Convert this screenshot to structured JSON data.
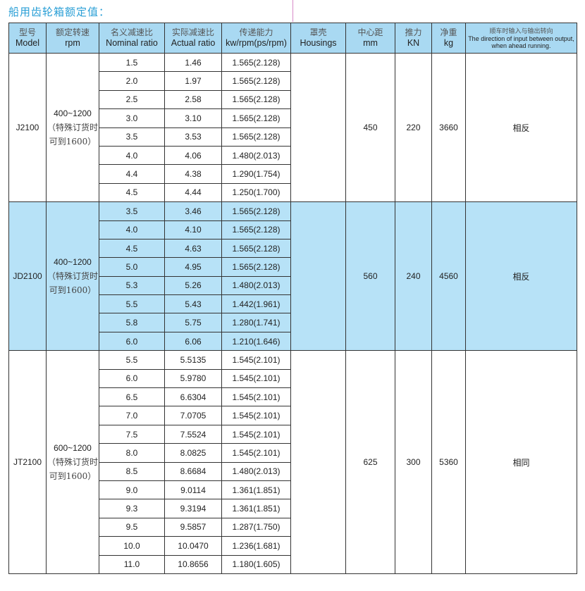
{
  "title": "船用齿轮箱额定值：",
  "headers": [
    {
      "cn": "型号",
      "en": "Model"
    },
    {
      "cn": "额定转速",
      "en": "rpm"
    },
    {
      "cn": "名义减速比",
      "en": "Nominal ratio"
    },
    {
      "cn": "实际减速比",
      "en": "Actual ratio"
    },
    {
      "cn": "传递能力",
      "en": "kw/rpm(ps/rpm)"
    },
    {
      "cn": "罩壳",
      "en": "Housings"
    },
    {
      "cn": "中心距",
      "en": "mm"
    },
    {
      "cn": "推力",
      "en": "KN"
    },
    {
      "cn": "净重",
      "en": "kg"
    },
    {
      "cn": "顺车时输入与输出转向",
      "en": "The direction of input between output, when ahead running."
    }
  ],
  "groups": [
    {
      "model": "J2100",
      "rpm": "400~1200",
      "rpm_note1": "（特殊订货时",
      "rpm_note2": "可到1600）",
      "housings": "",
      "mm": "450",
      "kn": "220",
      "kg": "3660",
      "direction": "相反",
      "highlight": false,
      "rows": [
        [
          "1.5",
          "1.46",
          "1.565(2.128)"
        ],
        [
          "2.0",
          "1.97",
          "1.565(2.128)"
        ],
        [
          "2.5",
          "2.58",
          "1.565(2.128)"
        ],
        [
          "3.0",
          "3.10",
          "1.565(2.128)"
        ],
        [
          "3.5",
          "3.53",
          "1.565(2.128)"
        ],
        [
          "4.0",
          "4.06",
          "1.480(2.013)"
        ],
        [
          "4.4",
          "4.38",
          "1.290(1.754)"
        ],
        [
          "4.5",
          "4.44",
          "1.250(1.700)"
        ]
      ]
    },
    {
      "model": "JD2100",
      "rpm": "400~1200",
      "rpm_note1": "（特殊订货时",
      "rpm_note2": "可到1600）",
      "housings": "",
      "mm": "560",
      "kn": "240",
      "kg": "4560",
      "direction": "相反",
      "highlight": true,
      "rows": [
        [
          "3.5",
          "3.46",
          "1.565(2.128)"
        ],
        [
          "4.0",
          "4.10",
          "1.565(2.128)"
        ],
        [
          "4.5",
          "4.63",
          "1.565(2.128)"
        ],
        [
          "5.0",
          "4.95",
          "1.565(2.128)"
        ],
        [
          "5.3",
          "5.26",
          "1.480(2.013)"
        ],
        [
          "5.5",
          "5.43",
          "1.442(1.961)"
        ],
        [
          "5.8",
          "5.75",
          "1.280(1.741)"
        ],
        [
          "6.0",
          "6.06",
          "1.210(1.646)"
        ]
      ]
    },
    {
      "model": "JT2100",
      "rpm": "600~1200",
      "rpm_note1": "（特殊订货时",
      "rpm_note2": "可到1600）",
      "housings": "",
      "mm": "625",
      "kn": "300",
      "kg": "5360",
      "direction": "相同",
      "highlight": false,
      "rows": [
        [
          "5.5",
          "5.5135",
          "1.545(2.101)"
        ],
        [
          "6.0",
          "5.9780",
          "1.545(2.101)"
        ],
        [
          "6.5",
          "6.6304",
          "1.545(2.101)"
        ],
        [
          "7.0",
          "7.0705",
          "1.545(2.101)"
        ],
        [
          "7.5",
          "7.5524",
          "1.545(2.101)"
        ],
        [
          "8.0",
          "8.0825",
          "1.545(2.101)"
        ],
        [
          "8.5",
          "8.6684",
          "1.480(2.013)"
        ],
        [
          "9.0",
          "9.0114",
          "1.361(1.851)"
        ],
        [
          "9.3",
          "9.3194",
          "1.361(1.851)"
        ],
        [
          "9.5",
          "9.5857",
          "1.287(1.750)"
        ],
        [
          "10.0",
          "10.0470",
          "1.236(1.681)"
        ],
        [
          "11.0",
          "10.8656",
          "1.180(1.605)"
        ]
      ]
    }
  ]
}
